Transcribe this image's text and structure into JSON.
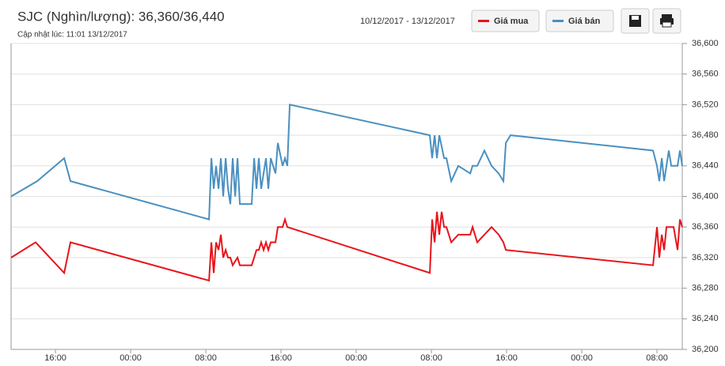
{
  "chart_data": {
    "type": "line",
    "title": "SJC (Nghìn/lượng): 36,360/36,440",
    "subtitle": "Cập nhật lúc: 11:01 13/12/2017",
    "date_range": "10/12/2017 - 13/12/2017",
    "xlim": [
      11.28,
      82.69
    ],
    "xticks": [
      {
        "value": 16,
        "label": "16:00"
      },
      {
        "value": 24,
        "label": "00:00"
      },
      {
        "value": 32,
        "label": "08:00"
      },
      {
        "value": 40,
        "label": "16:00"
      },
      {
        "value": 48,
        "label": "00:00"
      },
      {
        "value": 56,
        "label": "08:00"
      },
      {
        "value": 64,
        "label": "16:00"
      },
      {
        "value": 72,
        "label": "00:00"
      },
      {
        "value": 80,
        "label": "08:00"
      }
    ],
    "ylim": [
      36200,
      36600
    ],
    "yticks": [
      {
        "value": 36200,
        "label": "36,200"
      },
      {
        "value": 36240,
        "label": "36,240"
      },
      {
        "value": 36280,
        "label": "36,280"
      },
      {
        "value": 36320,
        "label": "36,320"
      },
      {
        "value": 36360,
        "label": "36,360"
      },
      {
        "value": 36400,
        "label": "36,400"
      },
      {
        "value": 36440,
        "label": "36,440"
      },
      {
        "value": 36480,
        "label": "36,480"
      },
      {
        "value": 36520,
        "label": "36,520"
      },
      {
        "value": 36560,
        "label": "36,560"
      },
      {
        "value": 36600,
        "label": "36,600"
      }
    ],
    "grid": true,
    "series": [
      {
        "name": "Giá mua",
        "color": "#e8141b",
        "x": [
          11.28,
          13.89,
          16.93,
          17.6,
          32.34,
          32.59,
          32.84,
          33.09,
          33.35,
          33.6,
          33.85,
          34.11,
          34.36,
          34.61,
          34.86,
          35.37,
          35.62,
          36.88,
          37.14,
          37.39,
          37.64,
          37.89,
          38.15,
          38.4,
          38.65,
          38.91,
          39.41,
          39.66,
          40.17,
          40.42,
          40.67,
          55.83,
          56.08,
          56.34,
          56.59,
          56.84,
          57.09,
          57.35,
          57.6,
          58.11,
          58.86,
          60.13,
          60.38,
          60.88,
          62.4,
          63.16,
          63.66,
          63.92,
          79.58,
          80.0,
          80.25,
          80.51,
          80.76,
          81.01,
          81.26,
          81.77,
          82.19,
          82.44,
          82.69
        ],
        "values": [
          36320,
          36340,
          36300,
          36340,
          36290,
          36340,
          36300,
          36340,
          36330,
          36350,
          36320,
          36330,
          36320,
          36320,
          36310,
          36320,
          36310,
          36310,
          36320,
          36330,
          36330,
          36340,
          36330,
          36340,
          36330,
          36340,
          36340,
          36360,
          36360,
          36370,
          36360,
          36300,
          36370,
          36340,
          36380,
          36350,
          36380,
          36360,
          36360,
          36340,
          36350,
          36350,
          36360,
          36340,
          36360,
          36350,
          36340,
          36330,
          36310,
          36360,
          36320,
          36350,
          36330,
          36360,
          36360,
          36360,
          36330,
          36370,
          36360
        ]
      },
      {
        "name": "Giá bán",
        "color": "#4a90c0",
        "x": [
          11.28,
          14.06,
          16.93,
          17.6,
          32.34,
          32.59,
          32.84,
          33.09,
          33.35,
          33.6,
          33.85,
          34.11,
          34.36,
          34.61,
          34.86,
          35.12,
          35.37,
          35.62,
          36.88,
          37.14,
          37.39,
          37.64,
          37.89,
          38.4,
          38.65,
          38.91,
          39.41,
          39.66,
          40.17,
          40.42,
          40.67,
          40.93,
          55.83,
          56.08,
          56.34,
          56.59,
          56.84,
          57.35,
          57.6,
          58.11,
          58.86,
          60.13,
          60.38,
          60.88,
          61.64,
          62.4,
          63.16,
          63.66,
          63.92,
          64.42,
          79.58,
          80.0,
          80.25,
          80.51,
          80.76,
          81.26,
          81.52,
          82.19,
          82.44,
          82.69
        ],
        "values": [
          36400,
          36420,
          36450,
          36420,
          36370,
          36450,
          36410,
          36440,
          36410,
          36450,
          36400,
          36450,
          36410,
          36390,
          36450,
          36400,
          36450,
          36390,
          36390,
          36450,
          36410,
          36450,
          36410,
          36450,
          36410,
          36450,
          36430,
          36470,
          36440,
          36450,
          36440,
          36520,
          36480,
          36450,
          36480,
          36450,
          36480,
          36450,
          36450,
          36420,
          36440,
          36430,
          36440,
          36440,
          36460,
          36440,
          36430,
          36420,
          36470,
          36480,
          36460,
          36440,
          36420,
          36450,
          36420,
          36460,
          36440,
          36440,
          36460,
          36440
        ]
      }
    ]
  }
}
